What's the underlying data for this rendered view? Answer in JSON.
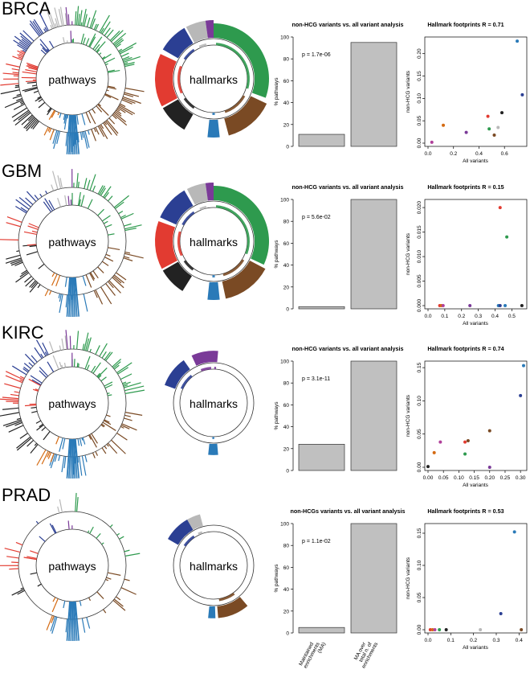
{
  "footer": {
    "bar_categories": [
      "Maintained enrichments (MA)",
      "MA over total n. of enrichments"
    ],
    "bar_category_lines": [
      [
        "Maintained",
        "enrichments",
        "(MA)"
      ],
      [
        "MA over",
        "total n. of",
        "enrichments"
      ]
    ]
  },
  "colors": {
    "green": "#2e9a4e",
    "brown": "#7a4a24",
    "blue": "#2b3f93",
    "red": "#e23b31",
    "black": "#222222",
    "grey": "#b8b8b8",
    "purple": "#7a3a98",
    "orange": "#d46a12",
    "lightblue": "#2a7ab8",
    "magenta": "#b0409a",
    "bar": "#c0c0c0"
  },
  "panels": [
    {
      "cancer": "BRCA",
      "pathways_label": "pathways",
      "hallmarks_label": "hallmarks",
      "bar_chart": {
        "title": "non-HCG variants vs. all variant analysis",
        "ylabel": "% pathways",
        "pvalue": "p = 1.7e-06",
        "values": [
          11,
          95
        ],
        "ylim": [
          0,
          100
        ],
        "yticks": [
          "0",
          "20",
          "40",
          "60",
          "80",
          "100"
        ]
      },
      "scatter": {
        "title": "Hallmark footprints R = 0.71",
        "xlabel": "All variants",
        "ylabel": "non-HCG variants",
        "xlim": [
          0,
          0.75
        ],
        "ylim": [
          0,
          0.23
        ],
        "xticks": [
          "0.0",
          "0.2",
          "0.4",
          "0.6"
        ],
        "yticks": [
          "0.00",
          "0.05",
          "0.10",
          "0.15",
          "0.20"
        ],
        "points": [
          {
            "x": 0.03,
            "y": 0.002,
            "c": "magenta"
          },
          {
            "x": 0.12,
            "y": 0.04,
            "c": "orange"
          },
          {
            "x": 0.3,
            "y": 0.024,
            "c": "purple"
          },
          {
            "x": 0.47,
            "y": 0.06,
            "c": "red"
          },
          {
            "x": 0.48,
            "y": 0.032,
            "c": "green"
          },
          {
            "x": 0.52,
            "y": 0.018,
            "c": "brown"
          },
          {
            "x": 0.55,
            "y": 0.035,
            "c": "grey"
          },
          {
            "x": 0.58,
            "y": 0.068,
            "c": "black"
          },
          {
            "x": 0.7,
            "y": 0.228,
            "c": "lightblue"
          },
          {
            "x": 0.74,
            "y": 0.108,
            "c": "blue"
          }
        ]
      }
    },
    {
      "cancer": "GBM",
      "pathways_label": "pathways",
      "hallmarks_label": "hallmarks",
      "bar_chart": {
        "title": "non-HCG variants vs. all variant analysis",
        "ylabel": "% pathways",
        "pvalue": "p = 5.6e-02",
        "values": [
          2,
          100
        ],
        "ylim": [
          0,
          100
        ],
        "yticks": [
          "0",
          "20",
          "40",
          "60",
          "80",
          "100"
        ]
      },
      "scatter": {
        "title": "Hallmark footprints R = 0.15",
        "xlabel": "All variants",
        "ylabel": "non-HCG variants",
        "xlim": [
          0,
          0.57
        ],
        "ylim": [
          0,
          0.021
        ],
        "xticks": [
          "0.0",
          "0.1",
          "0.2",
          "0.3",
          "0.4",
          "0.5"
        ],
        "yticks": [
          "0.000",
          "0.005",
          "0.010",
          "0.015",
          "0.020"
        ],
        "points": [
          {
            "x": 0.07,
            "y": 0,
            "c": "red"
          },
          {
            "x": 0.08,
            "y": 0,
            "c": "orange"
          },
          {
            "x": 0.09,
            "y": 0,
            "c": "magenta"
          },
          {
            "x": 0.25,
            "y": 0,
            "c": "purple"
          },
          {
            "x": 0.42,
            "y": 0,
            "c": "lightblue"
          },
          {
            "x": 0.43,
            "y": 0,
            "c": "blue"
          },
          {
            "x": 0.43,
            "y": 0.02,
            "c": "red"
          },
          {
            "x": 0.46,
            "y": 0,
            "c": "lightblue"
          },
          {
            "x": 0.47,
            "y": 0.014,
            "c": "green"
          },
          {
            "x": 0.56,
            "y": 0,
            "c": "black"
          }
        ]
      }
    },
    {
      "cancer": "KIRC",
      "pathways_label": "pathways",
      "hallmarks_label": "hallmarks",
      "bar_chart": {
        "title": "non-HCG variants vs. all variant analysis",
        "ylabel": "% pathways",
        "pvalue": "p = 3.1e-11",
        "values": [
          24,
          100
        ],
        "ylim": [
          0,
          100
        ],
        "yticks": [
          "0",
          "20",
          "40",
          "60",
          "80",
          "100"
        ]
      },
      "scatter": {
        "title": "Hallmark footprints R = 0.74",
        "xlabel": "All variants",
        "ylabel": "non-HCG variants",
        "xlim": [
          0,
          0.31
        ],
        "ylim": [
          0,
          0.155
        ],
        "xticks": [
          "0.00",
          "0.05",
          "0.10",
          "0.15",
          "0.20",
          "0.25",
          "0.30"
        ],
        "yticks": [
          "0.00",
          "0.05",
          "0.10",
          "0.15"
        ],
        "points": [
          {
            "x": 0.0,
            "y": 0.001,
            "c": "black"
          },
          {
            "x": 0.02,
            "y": 0.022,
            "c": "orange"
          },
          {
            "x": 0.04,
            "y": 0.038,
            "c": "magenta"
          },
          {
            "x": 0.12,
            "y": 0.02,
            "c": "green"
          },
          {
            "x": 0.12,
            "y": 0.038,
            "c": "red"
          },
          {
            "x": 0.13,
            "y": 0.04,
            "c": "brown"
          },
          {
            "x": 0.2,
            "y": 0.0,
            "c": "purple"
          },
          {
            "x": 0.2,
            "y": 0.055,
            "c": "brown"
          },
          {
            "x": 0.3,
            "y": 0.108,
            "c": "blue"
          },
          {
            "x": 0.31,
            "y": 0.153,
            "c": "lightblue"
          }
        ]
      }
    },
    {
      "cancer": "PRAD",
      "pathways_label": "pathways",
      "hallmarks_label": "hallmarks",
      "bar_chart": {
        "title": "non-HCGs variants vs. all variant analysis",
        "ylabel": "% pathways",
        "pvalue": "p = 1.1e-02",
        "values": [
          5,
          100
        ],
        "ylim": [
          0,
          100
        ],
        "yticks": [
          "0",
          "20",
          "40",
          "60",
          "80",
          "100"
        ]
      },
      "scatter": {
        "title": "Hallmark footprints R = 0.53",
        "xlabel": "All variants",
        "ylabel": "non-HCG variants",
        "xlim": [
          0,
          0.42
        ],
        "ylim": [
          0,
          0.16
        ],
        "xticks": [
          "0.0",
          "0.1",
          "0.2",
          "0.3",
          "0.4"
        ],
        "yticks": [
          "0.00",
          "0.05",
          "0.10",
          "0.15"
        ],
        "points": [
          {
            "x": 0.01,
            "y": 0,
            "c": "red"
          },
          {
            "x": 0.02,
            "y": 0,
            "c": "orange"
          },
          {
            "x": 0.03,
            "y": 0,
            "c": "magenta"
          },
          {
            "x": 0.05,
            "y": 0,
            "c": "green"
          },
          {
            "x": 0.08,
            "y": 0,
            "c": "black"
          },
          {
            "x": 0.23,
            "y": 0,
            "c": "grey"
          },
          {
            "x": 0.32,
            "y": 0.025,
            "c": "blue"
          },
          {
            "x": 0.38,
            "y": 0.152,
            "c": "lightblue"
          },
          {
            "x": 0.41,
            "y": 0,
            "c": "brown"
          }
        ]
      }
    }
  ],
  "chart_data": [
    {
      "type": "bar",
      "title": "non-HCG variants vs. all variant analysis",
      "ylabel": "% pathways",
      "categories": [
        "Maintained enrichments (MA)",
        "MA over total n. of enrichments"
      ],
      "values": [
        11,
        95
      ],
      "ylim": [
        0,
        100
      ]
    },
    {
      "type": "scatter",
      "title": "Hallmark footprints R = 0.71",
      "xlabel": "All variants",
      "ylabel": "non-HCG variants"
    },
    {
      "type": "bar",
      "title": "non-HCG variants vs. all variant analysis",
      "ylabel": "% pathways",
      "categories": [
        "Maintained enrichments (MA)",
        "MA over total n. of enrichments"
      ],
      "values": [
        2,
        100
      ],
      "ylim": [
        0,
        100
      ]
    },
    {
      "type": "scatter",
      "title": "Hallmark footprints R = 0.15",
      "xlabel": "All variants",
      "ylabel": "non-HCG variants"
    },
    {
      "type": "bar",
      "title": "non-HCG variants vs. all variant analysis",
      "ylabel": "% pathways",
      "categories": [
        "Maintained enrichments (MA)",
        "MA over total n. of enrichments"
      ],
      "values": [
        24,
        100
      ],
      "ylim": [
        0,
        100
      ]
    },
    {
      "type": "scatter",
      "title": "Hallmark footprints R = 0.74",
      "xlabel": "All variants",
      "ylabel": "non-HCG variants"
    },
    {
      "type": "bar",
      "title": "non-HCGs variants vs. all variant analysis",
      "ylabel": "% pathways",
      "categories": [
        "Maintained enrichments (MA)",
        "MA over total n. of enrichments"
      ],
      "values": [
        5,
        100
      ],
      "ylim": [
        0,
        100
      ]
    },
    {
      "type": "scatter",
      "title": "Hallmark footprints R = 0.53",
      "xlabel": "All variants",
      "ylabel": "non-HCG variants"
    }
  ]
}
